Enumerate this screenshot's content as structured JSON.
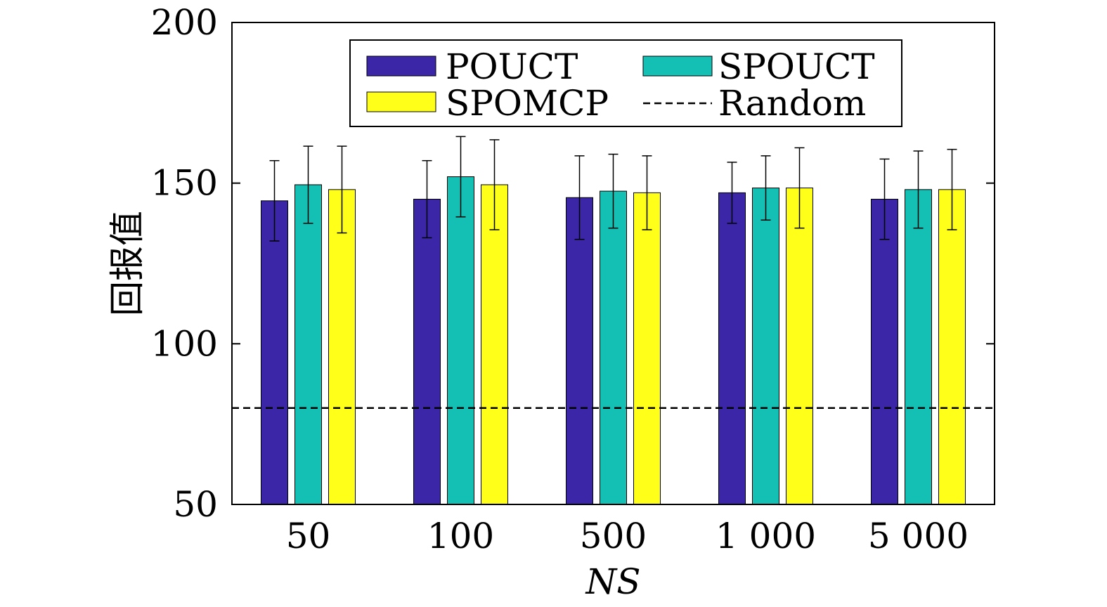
{
  "chart_data": {
    "type": "bar",
    "categories": [
      "50",
      "100",
      "500",
      "1 000",
      "5 000"
    ],
    "series": [
      {
        "name": "POUCT",
        "color": "#3b26a8",
        "values": [
          144.5,
          145.0,
          145.5,
          147.0,
          145.0
        ],
        "errors": [
          12.5,
          12.0,
          13.0,
          9.5,
          12.5
        ]
      },
      {
        "name": "SPOUCT",
        "color": "#14bfb3",
        "values": [
          149.5,
          152.0,
          147.5,
          148.5,
          148.0
        ],
        "errors": [
          12.0,
          12.5,
          11.5,
          10.0,
          12.0
        ]
      },
      {
        "name": "SPOMCP",
        "color": "#ffff1a",
        "values": [
          148.0,
          149.5,
          147.0,
          148.5,
          148.0
        ],
        "errors": [
          13.5,
          14.0,
          11.5,
          12.5,
          12.5
        ]
      }
    ],
    "reference_line": {
      "name": "Random",
      "value": 80,
      "style": "dashed"
    },
    "xlabel": "NS",
    "ylabel": "回报值",
    "ylim": [
      50,
      200
    ],
    "yticks": [
      50,
      100,
      150,
      200
    ],
    "grid": false,
    "legend_position": "top"
  }
}
